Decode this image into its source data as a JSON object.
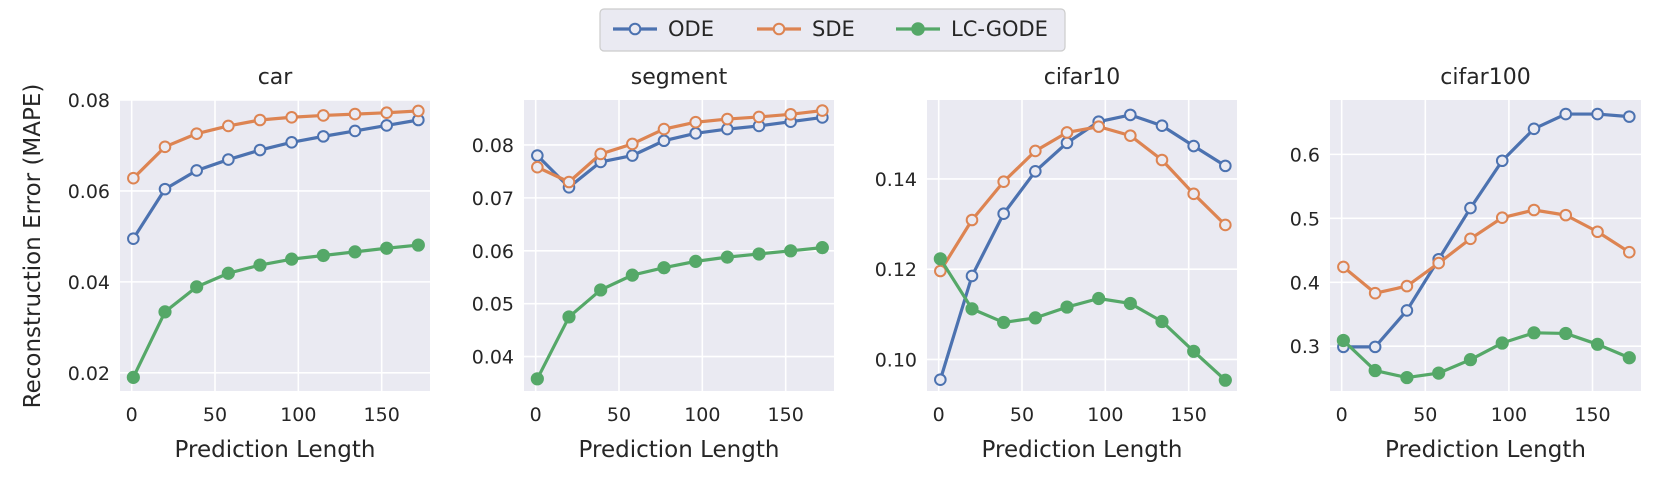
{
  "legend": {
    "entries": [
      {
        "name": "ODE",
        "color": "#4c72b0",
        "marker": "open-circle"
      },
      {
        "name": "SDE",
        "color": "#dd8452",
        "marker": "open-circle"
      },
      {
        "name": "LC-GODE",
        "color": "#55a868",
        "marker": "filled-circle"
      }
    ]
  },
  "shared": {
    "ylabel": "Reconstruction Error (MAPE)",
    "xlabel": "Prediction Length"
  },
  "chart_data": [
    {
      "type": "line",
      "title": "car",
      "xlabel": "Prediction Length",
      "ylabel": "Reconstruction Error (MAPE)",
      "x": [
        1,
        20,
        39,
        58,
        77,
        96,
        115,
        134,
        153,
        172
      ],
      "xlim": [
        -7,
        179
      ],
      "ylim": [
        0.016,
        0.08
      ],
      "xticks": [
        0,
        50,
        100,
        150
      ],
      "yticks": [
        0.02,
        0.04,
        0.06,
        0.08
      ],
      "ytick_labels": [
        "0.02",
        "0.04",
        "0.06",
        "0.08"
      ],
      "grid": true,
      "series": [
        {
          "name": "ODE",
          "values": [
            0.0495,
            0.0604,
            0.0645,
            0.0669,
            0.069,
            0.0707,
            0.072,
            0.0732,
            0.0744,
            0.0756
          ]
        },
        {
          "name": "SDE",
          "values": [
            0.0628,
            0.0697,
            0.0726,
            0.0743,
            0.0756,
            0.0762,
            0.0766,
            0.0769,
            0.0772,
            0.0776
          ]
        },
        {
          "name": "LC-GODE",
          "values": [
            0.019,
            0.0334,
            0.0389,
            0.0419,
            0.0437,
            0.045,
            0.0458,
            0.0466,
            0.0474,
            0.0481
          ]
        }
      ]
    },
    {
      "type": "line",
      "title": "segment",
      "xlabel": "Prediction Length",
      "ylabel": "",
      "x": [
        1,
        20,
        39,
        58,
        77,
        96,
        115,
        134,
        153,
        172
      ],
      "xlim": [
        -7,
        179
      ],
      "ylim": [
        0.0335,
        0.0885
      ],
      "xticks": [
        0,
        50,
        100,
        150
      ],
      "yticks": [
        0.04,
        0.05,
        0.06,
        0.07,
        0.08
      ],
      "ytick_labels": [
        "0.04",
        "0.05",
        "0.06",
        "0.07",
        "0.08"
      ],
      "grid": true,
      "series": [
        {
          "name": "ODE",
          "values": [
            0.078,
            0.072,
            0.0768,
            0.078,
            0.0808,
            0.0822,
            0.083,
            0.0836,
            0.0844,
            0.0852
          ]
        },
        {
          "name": "SDE",
          "values": [
            0.0758,
            0.073,
            0.0783,
            0.0802,
            0.083,
            0.0843,
            0.0849,
            0.0853,
            0.0858,
            0.0865
          ]
        },
        {
          "name": "LC-GODE",
          "values": [
            0.0358,
            0.0475,
            0.0526,
            0.0554,
            0.0568,
            0.058,
            0.0588,
            0.0594,
            0.06,
            0.0606
          ]
        }
      ]
    },
    {
      "type": "line",
      "title": "cifar10",
      "xlabel": "Prediction Length",
      "ylabel": "",
      "x": [
        1,
        20,
        39,
        58,
        77,
        96,
        115,
        134,
        153,
        172
      ],
      "xlim": [
        -7,
        179
      ],
      "ylim": [
        0.093,
        0.1575
      ],
      "xticks": [
        0,
        50,
        100,
        150
      ],
      "yticks": [
        0.1,
        0.12,
        0.14
      ],
      "ytick_labels": [
        "0.10",
        "0.12",
        "0.14"
      ],
      "grid": true,
      "series": [
        {
          "name": "ODE",
          "values": [
            0.0955,
            0.1185,
            0.1323,
            0.1417,
            0.148,
            0.1527,
            0.1542,
            0.1518,
            0.1473,
            0.1429
          ]
        },
        {
          "name": "SDE",
          "values": [
            0.1196,
            0.1309,
            0.1394,
            0.1462,
            0.1503,
            0.1516,
            0.1496,
            0.1442,
            0.1367,
            0.1298
          ]
        },
        {
          "name": "LC-GODE",
          "values": [
            0.1223,
            0.1112,
            0.1082,
            0.1092,
            0.1116,
            0.1135,
            0.1124,
            0.1084,
            0.1018,
            0.0954
          ]
        }
      ]
    },
    {
      "type": "line",
      "title": "cifar100",
      "xlabel": "Prediction Length",
      "ylabel": "",
      "x": [
        1,
        20,
        39,
        58,
        77,
        96,
        115,
        134,
        153,
        172
      ],
      "xlim": [
        -7,
        179
      ],
      "ylim": [
        0.23,
        0.685
      ],
      "xticks": [
        0,
        50,
        100,
        150
      ],
      "yticks": [
        0.3,
        0.4,
        0.5,
        0.6
      ],
      "ytick_labels": [
        "0.3",
        "0.4",
        "0.5",
        "0.6"
      ],
      "grid": true,
      "series": [
        {
          "name": "ODE",
          "values": [
            0.299,
            0.299,
            0.356,
            0.436,
            0.516,
            0.59,
            0.64,
            0.663,
            0.663,
            0.659
          ]
        },
        {
          "name": "SDE",
          "values": [
            0.424,
            0.383,
            0.394,
            0.43,
            0.468,
            0.501,
            0.513,
            0.505,
            0.479,
            0.447
          ]
        },
        {
          "name": "LC-GODE",
          "values": [
            0.309,
            0.262,
            0.251,
            0.258,
            0.279,
            0.305,
            0.321,
            0.32,
            0.303,
            0.282
          ]
        }
      ]
    }
  ]
}
